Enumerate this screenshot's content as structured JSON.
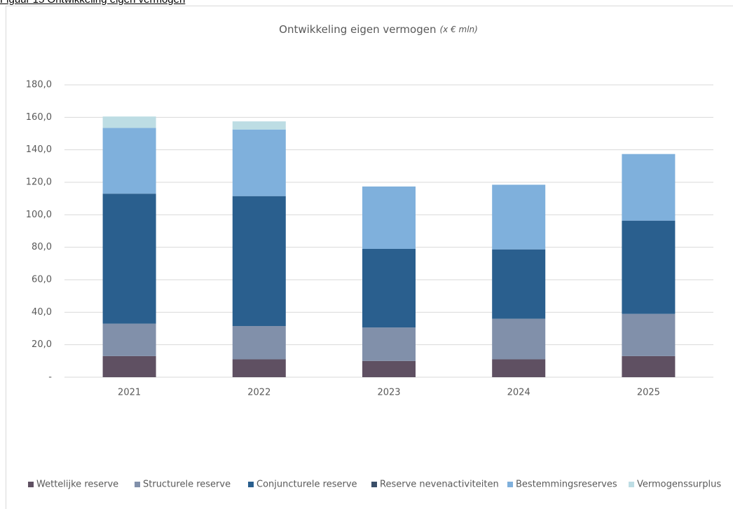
{
  "figure_caption": "Figuur 15 Ontwikkeling eigen vermogen",
  "chart_data": {
    "type": "stacked_bar",
    "title": "Ontwikkeling eigen vermogen",
    "subtitle": "(x € mln)",
    "categories": [
      "2021",
      "2022",
      "2023",
      "2024",
      "2025"
    ],
    "series": [
      {
        "name": "Wettelijke reserve",
        "color": "#5f5062",
        "values": [
          13,
          11,
          10,
          11,
          13
        ]
      },
      {
        "name": "Structurele reserve",
        "color": "#8190aa",
        "values": [
          20,
          20.5,
          20.6,
          25,
          26
        ]
      },
      {
        "name": "Conjuncturele reserve",
        "color": "#2a5f8e",
        "values": [
          80,
          80,
          48.4,
          42.7,
          57.4
        ]
      },
      {
        "name": "Reserve nevenactiviteiten",
        "color": "#3a4e68",
        "values": [
          0,
          0,
          0,
          0,
          0
        ]
      },
      {
        "name": "Bestemmingsreserves",
        "color": "#7fb0dc",
        "values": [
          40.5,
          41,
          38.4,
          39.8,
          41
        ]
      },
      {
        "name": "Vermogenssurplus",
        "color": "#bddde4",
        "values": [
          7,
          5,
          0,
          0,
          0
        ]
      }
    ],
    "ylim": [
      0,
      180
    ],
    "yticks": [
      {
        "value": 0,
        "label": "-"
      },
      {
        "value": 20,
        "label": "20,0"
      },
      {
        "value": 40,
        "label": "40,0"
      },
      {
        "value": 60,
        "label": "60,0"
      },
      {
        "value": 80,
        "label": "80,0"
      },
      {
        "value": 100,
        "label": "100,0"
      },
      {
        "value": 120,
        "label": "120,0"
      },
      {
        "value": 140,
        "label": "140,0"
      },
      {
        "value": 160,
        "label": "160,0"
      },
      {
        "value": 180,
        "label": "180,0"
      }
    ],
    "grid": true,
    "legend": "bottom"
  }
}
